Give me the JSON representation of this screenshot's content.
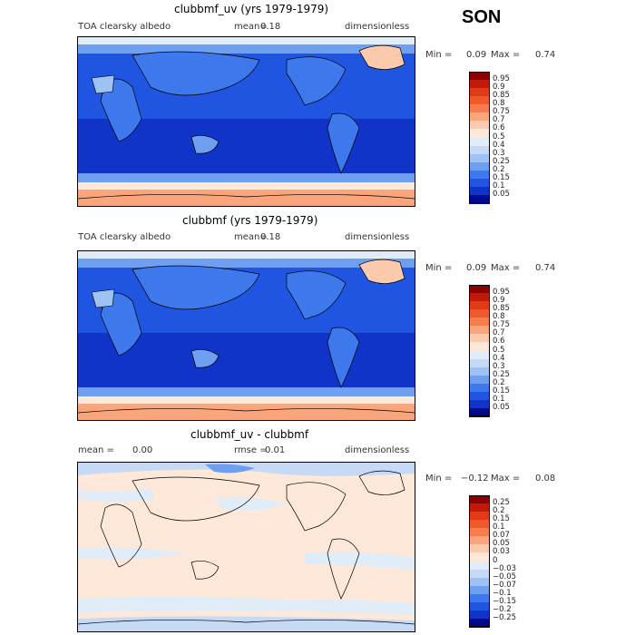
{
  "season": "SON",
  "panels": [
    {
      "title": "clubbmf_uv (yrs 1979-1979)",
      "left_label": "TOA clearsky albedo",
      "mean_label": "mean=",
      "mean_value": "0.18",
      "units": "dimensionless",
      "min_label": "Min =",
      "min_value": "0.09",
      "max_label": "Max =",
      "max_value": "0.74"
    },
    {
      "title": "clubbmf (yrs 1979-1979)",
      "left_label": "TOA clearsky albedo",
      "mean_label": "mean=",
      "mean_value": "0.18",
      "units": "dimensionless",
      "min_label": "Min =",
      "min_value": "0.09",
      "max_label": "Max =",
      "max_value": "0.74"
    },
    {
      "title": "clubbmf_uv - clubbmf",
      "left_label": "mean =",
      "mean_label": "rmse =",
      "mean_value": "0.01",
      "left_value": "0.00",
      "units": "dimensionless",
      "min_label": "Min =",
      "min_value": "−0.12",
      "max_label": "Max =",
      "max_value": "0.08"
    }
  ],
  "chart_data": [
    {
      "type": "heatmap",
      "title": "clubbmf_uv (yrs 1979-1979)",
      "variable": "TOA clearsky albedo",
      "units": "dimensionless",
      "mean": 0.18,
      "min": 0.09,
      "max": 0.74,
      "colorbar_levels": [
        "0.95",
        "0.9",
        "0.85",
        "0.8",
        "0.75",
        "0.7",
        "0.6",
        "0.5",
        "0.4",
        "0.3",
        "0.25",
        "0.2",
        "0.15",
        "0.1",
        "0.05"
      ],
      "colorbar_colors": [
        "#8b0000",
        "#c21a08",
        "#e03b16",
        "#f05a2a",
        "#f77d4e",
        "#fba57c",
        "#fccbae",
        "#fde8d9",
        "#e0ecf8",
        "#c6daf6",
        "#9ec2f3",
        "#6f9ff0",
        "#3d78ec",
        "#1f55e0",
        "#1034c8",
        "#000a8c"
      ]
    },
    {
      "type": "heatmap",
      "title": "clubbmf (yrs 1979-1979)",
      "variable": "TOA clearsky albedo",
      "units": "dimensionless",
      "mean": 0.18,
      "min": 0.09,
      "max": 0.74,
      "colorbar_levels": [
        "0.95",
        "0.9",
        "0.85",
        "0.8",
        "0.75",
        "0.7",
        "0.6",
        "0.5",
        "0.4",
        "0.3",
        "0.25",
        "0.2",
        "0.15",
        "0.1",
        "0.05"
      ],
      "colorbar_colors": [
        "#8b0000",
        "#c21a08",
        "#e03b16",
        "#f05a2a",
        "#f77d4e",
        "#fba57c",
        "#fccbae",
        "#fde8d9",
        "#e0ecf8",
        "#c6daf6",
        "#9ec2f3",
        "#6f9ff0",
        "#3d78ec",
        "#1f55e0",
        "#1034c8",
        "#000a8c"
      ]
    },
    {
      "type": "heatmap",
      "title": "clubbmf_uv - clubbmf",
      "units": "dimensionless",
      "mean": 0.0,
      "rmse": 0.01,
      "min": -0.12,
      "max": 0.08,
      "colorbar_levels": [
        "0.25",
        "0.2",
        "0.15",
        "0.1",
        "0.07",
        "0.05",
        "0.03",
        "0",
        "−0.03",
        "−0.05",
        "−0.07",
        "−0.1",
        "−0.15",
        "−0.2",
        "−0.25"
      ],
      "colorbar_colors": [
        "#8b0000",
        "#c21a08",
        "#e03b16",
        "#f05a2a",
        "#f77d4e",
        "#fba57c",
        "#fccbae",
        "#fde8d9",
        "#e0ecf8",
        "#c6daf6",
        "#9ec2f3",
        "#6f9ff0",
        "#3d78ec",
        "#1f55e0",
        "#1034c8",
        "#000a8c"
      ]
    }
  ]
}
